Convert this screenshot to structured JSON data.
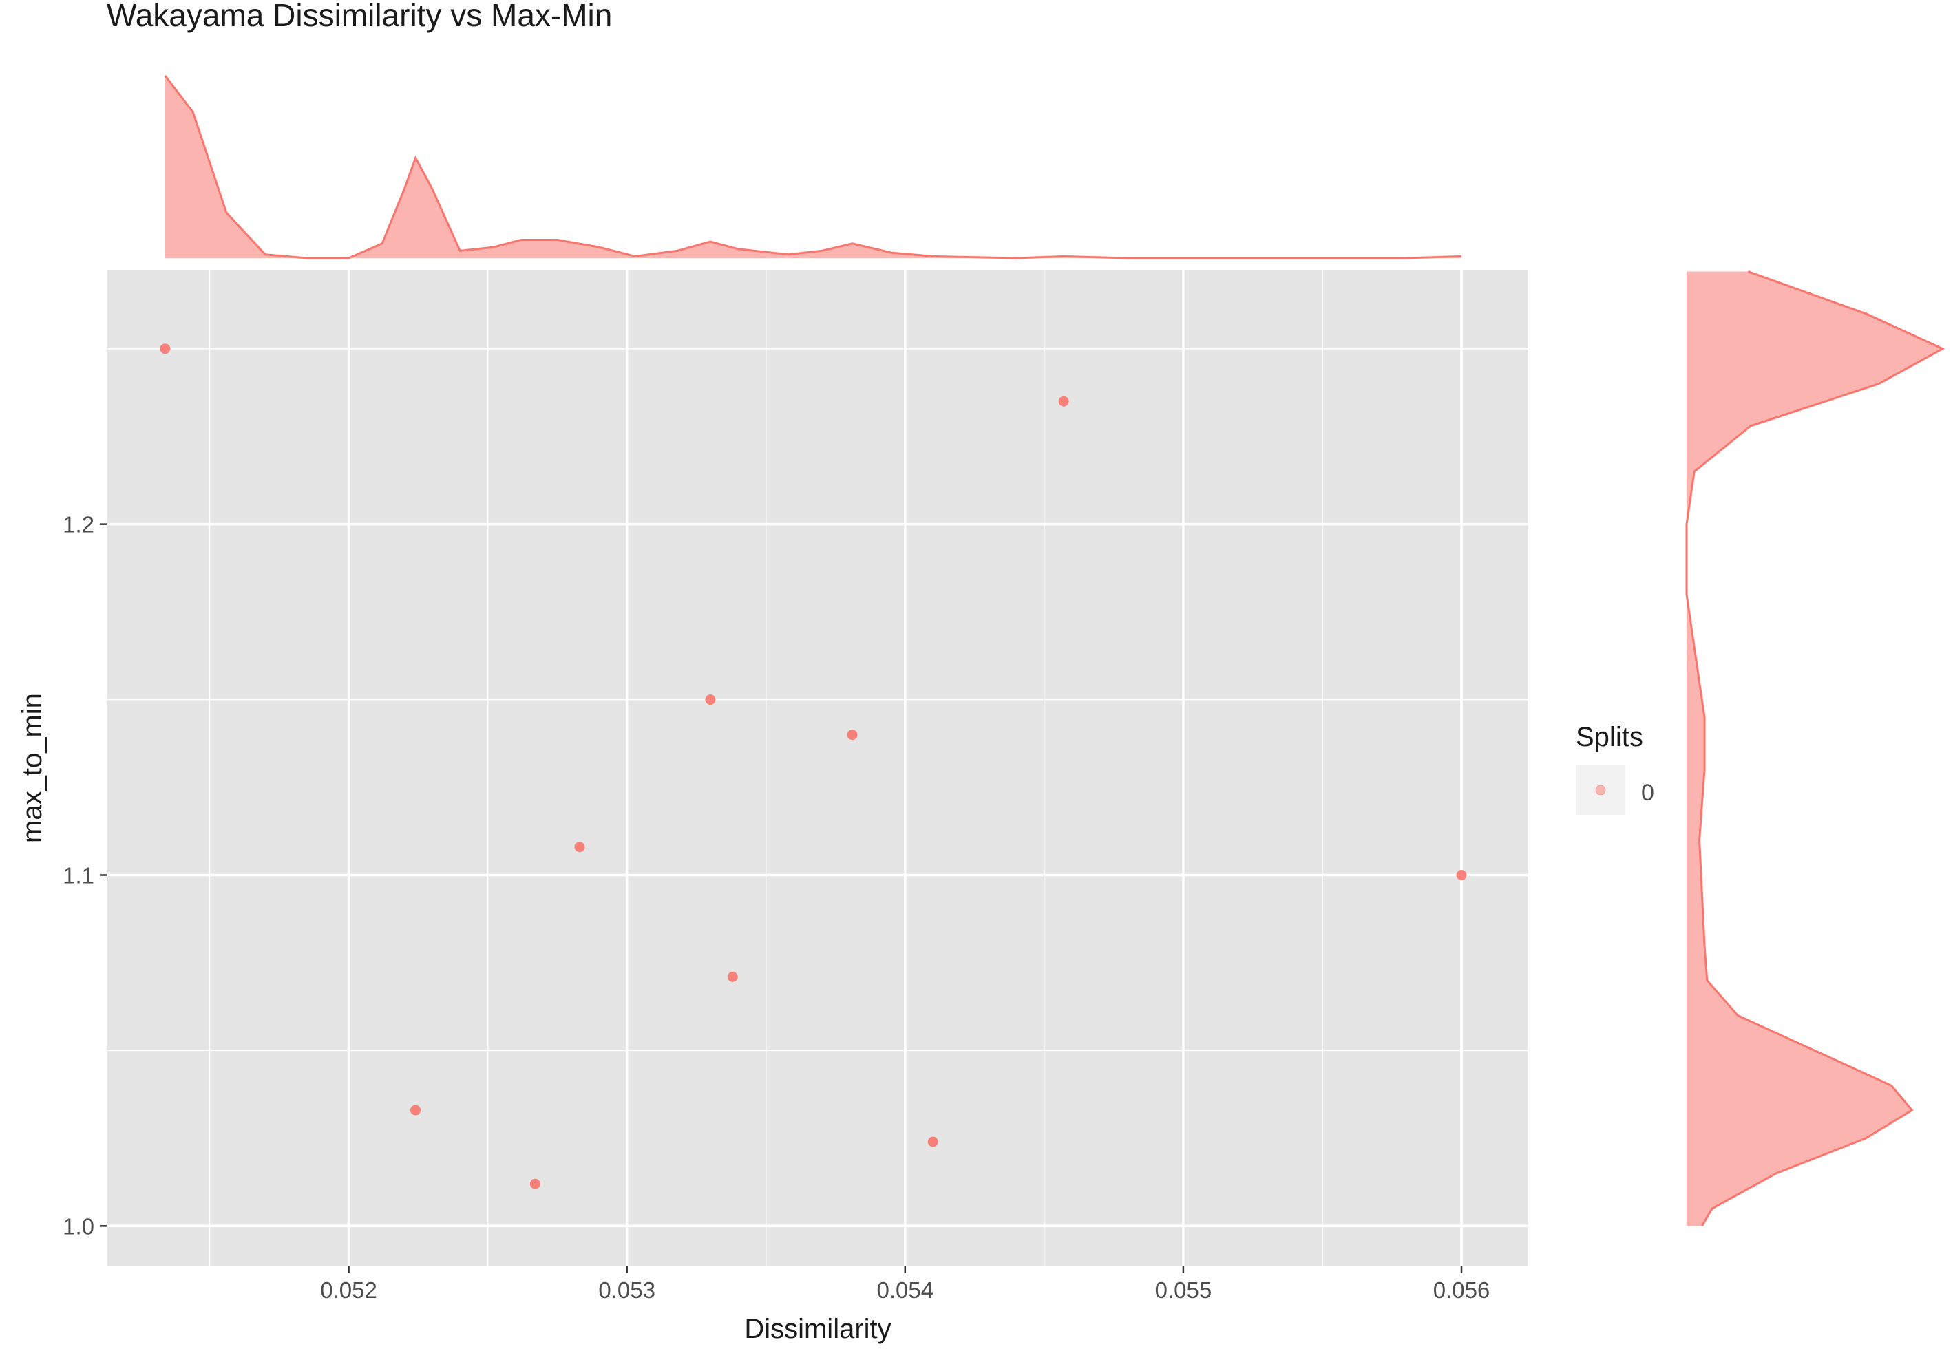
{
  "chart_data": {
    "type": "scatter",
    "title": "Wakayama Dissimilarity vs Max-Min",
    "xlabel": "Dissimilarity",
    "ylabel": "max_to_min",
    "xlim": [
      0.05113,
      0.05624
    ],
    "ylim": [
      0.9885,
      1.2725
    ],
    "x_ticks": [
      0.052,
      0.053,
      0.054,
      0.055,
      0.056
    ],
    "x_tick_labels": [
      "0.052",
      "0.053",
      "0.054",
      "0.055",
      "0.056"
    ],
    "y_ticks": [
      1.0,
      1.1,
      1.2
    ],
    "y_tick_labels": [
      "1.0",
      "1.1",
      "1.2"
    ],
    "grid": true,
    "legend": {
      "title": "Splits",
      "placement": "right",
      "entries": [
        "0"
      ]
    },
    "point_color": "#F8766D",
    "panel_background": "#E5E5E5",
    "series": [
      {
        "name": "0",
        "points": [
          {
            "x": 0.05134,
            "y": 1.25
          },
          {
            "x": 0.05224,
            "y": 1.033
          },
          {
            "x": 0.05267,
            "y": 1.012
          },
          {
            "x": 0.05283,
            "y": 1.108
          },
          {
            "x": 0.0533,
            "y": 1.15
          },
          {
            "x": 0.05338,
            "y": 1.071
          },
          {
            "x": 0.05381,
            "y": 1.14
          },
          {
            "x": 0.0541,
            "y": 1.024
          },
          {
            "x": 0.05457,
            "y": 1.235
          },
          {
            "x": 0.056,
            "y": 1.1
          }
        ]
      }
    ],
    "marginal_x_density": {
      "x": [
        0.05134,
        0.05144,
        0.05156,
        0.0517,
        0.05185,
        0.052,
        0.05212,
        0.0522,
        0.05224,
        0.0523,
        0.0524,
        0.05252,
        0.05262,
        0.05275,
        0.0529,
        0.05303,
        0.05318,
        0.0533,
        0.0534,
        0.05358,
        0.0537,
        0.05381,
        0.05395,
        0.0541,
        0.0544,
        0.05457,
        0.0548,
        0.0552,
        0.0558,
        0.056
      ],
      "y": [
        1.0,
        0.8,
        0.25,
        0.02,
        0.0,
        0.0,
        0.08,
        0.38,
        0.55,
        0.38,
        0.04,
        0.06,
        0.1,
        0.1,
        0.06,
        0.01,
        0.04,
        0.09,
        0.05,
        0.02,
        0.04,
        0.08,
        0.03,
        0.01,
        0.0,
        0.01,
        0.0,
        0.0,
        0.0,
        0.01
      ]
    },
    "marginal_y_density": {
      "y": [
        1.272,
        1.26,
        1.25,
        1.24,
        1.228,
        1.215,
        1.2,
        1.18,
        1.16,
        1.145,
        1.13,
        1.11,
        1.095,
        1.08,
        1.07,
        1.06,
        1.05,
        1.04,
        1.033,
        1.025,
        1.015,
        1.005,
        1.0
      ],
      "w": [
        0.24,
        0.7,
        1.0,
        0.75,
        0.25,
        0.03,
        0.0,
        0.0,
        0.04,
        0.07,
        0.07,
        0.05,
        0.06,
        0.07,
        0.08,
        0.2,
        0.5,
        0.8,
        0.88,
        0.7,
        0.35,
        0.1,
        0.06
      ]
    }
  }
}
